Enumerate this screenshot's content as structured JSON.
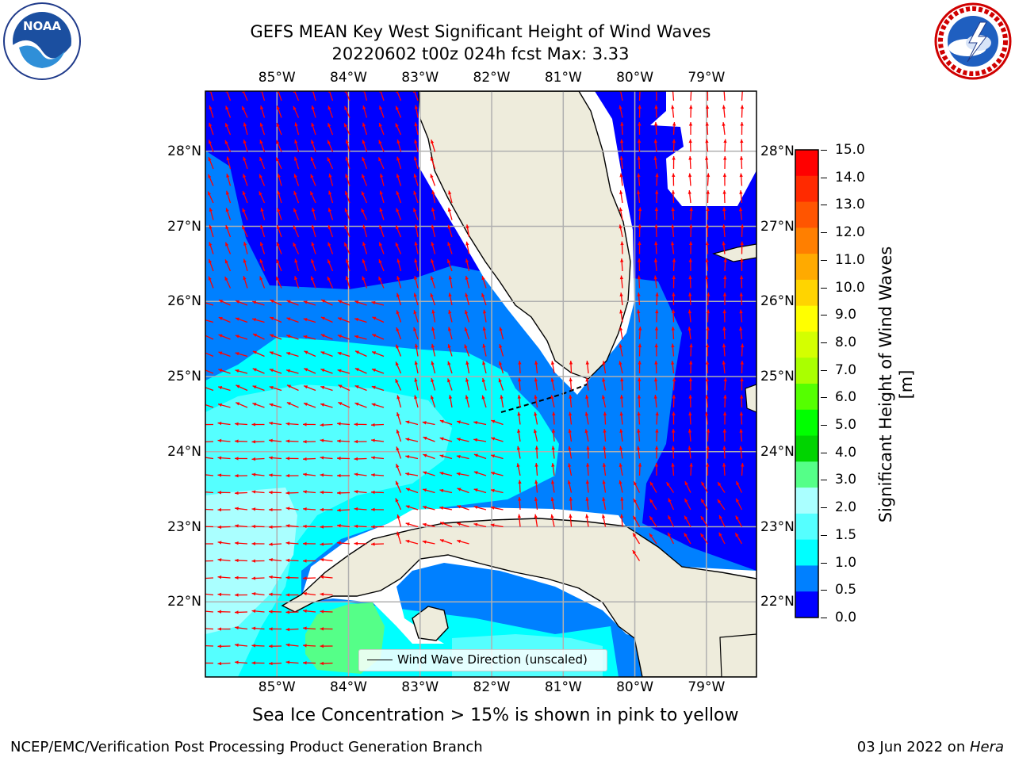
{
  "header": {
    "title_line1": "GEFS MEAN Key West Significant Height of Wind Waves",
    "title_line2": "20220602 t00z 024h fcst   Max: 3.33"
  },
  "logos": {
    "left": {
      "name": "NOAA",
      "text": "NOAA",
      "ring_text": "NATIONAL OCEANIC AND ATMOSPHERIC ADMINISTRATION · U.S. DEPARTMENT OF COMMERCE"
    },
    "right": {
      "name": "National Weather Service",
      "ring_text": "NATIONAL WEATHER SERVICE"
    }
  },
  "map": {
    "lon_ticks": [
      "85°W",
      "84°W",
      "83°W",
      "82°W",
      "81°W",
      "80°W",
      "79°W"
    ],
    "lat_ticks": [
      "28°N",
      "27°N",
      "26°N",
      "25°N",
      "24°N",
      "23°N",
      "22°N"
    ],
    "lon_range": [
      -86.0,
      -78.3
    ],
    "lat_range": [
      21.0,
      28.8
    ],
    "land_color": "#eeecdc",
    "arrow_color": "#ff0000",
    "grid": true
  },
  "legend": {
    "label": "Wind Wave Direction (unscaled)"
  },
  "colorbar": {
    "label": "Significant Height of Wind Waves [m]",
    "ticks": [
      "15.0",
      "14.0",
      "13.0",
      "12.0",
      "11.0",
      "10.0",
      "9.0",
      "8.0",
      "7.0",
      "6.0",
      "5.0",
      "4.0",
      "3.0",
      "2.0",
      "1.5",
      "1.0",
      "0.5",
      "0.0"
    ],
    "colors": [
      "#ff0000",
      "#ff2a00",
      "#ff5500",
      "#ff7f00",
      "#ffaa00",
      "#ffd400",
      "#ffff00",
      "#d4ff00",
      "#aaff00",
      "#55ff00",
      "#00ff00",
      "#00d400",
      "#55ff88",
      "#aaffff",
      "#55ffff",
      "#00ffff",
      "#0080ff",
      "#0000ff"
    ]
  },
  "chart_data": {
    "type": "heatmap",
    "title": "GEFS MEAN Key West Significant Height of Wind Waves",
    "subtitle": "20220602 t00z 024h fcst   Max: 3.33",
    "max_value": 3.33,
    "units": "m",
    "levels": [
      0.0,
      0.5,
      1.0,
      1.5,
      2.0,
      3.0,
      4.0,
      5.0,
      6.0,
      7.0,
      8.0,
      9.0,
      10.0,
      11.0,
      12.0,
      13.0,
      14.0,
      15.0
    ]
  },
  "notes": {
    "sea_ice": "Sea Ice Concentration > 15% is shown in pink to yellow",
    "footer_left": "NCEP/EMC/Verification Post Processing Product Generation Branch",
    "footer_right_date": "03 Jun 2022 on ",
    "footer_right_host": "Hera"
  }
}
